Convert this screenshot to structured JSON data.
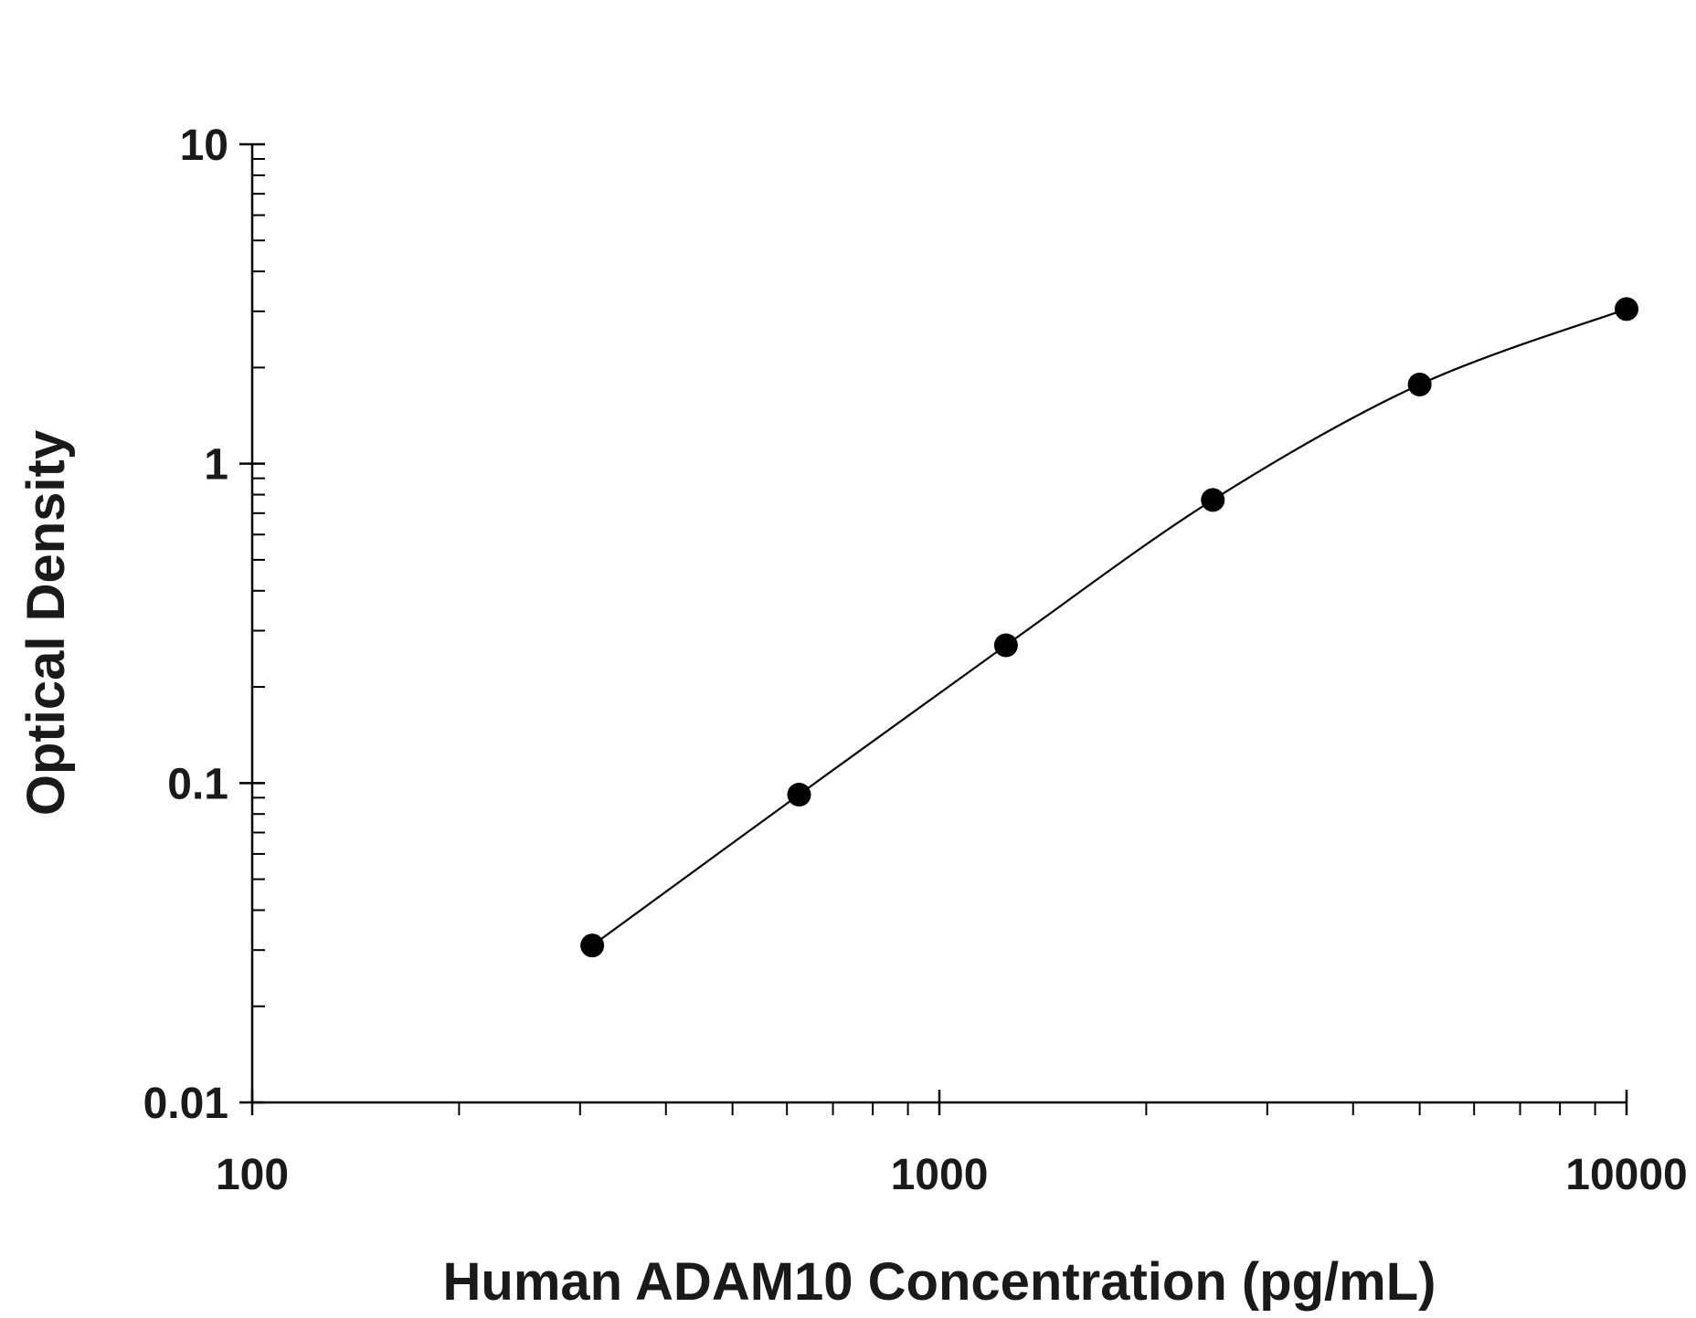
{
  "chart_data": {
    "type": "scatter",
    "title": "",
    "xlabel": "Human ADAM10 Concentration (pg/mL)",
    "ylabel": "Optical Density",
    "x_scale": "log",
    "y_scale": "log",
    "xlim": [
      100,
      10000
    ],
    "ylim": [
      0.01,
      10
    ],
    "x_ticks": [
      100,
      1000,
      10000
    ],
    "x_tick_labels": [
      "100",
      "1000",
      "10000"
    ],
    "y_ticks": [
      0.01,
      0.1,
      1,
      10
    ],
    "y_tick_labels": [
      "0.01",
      "0.1",
      "1",
      "10"
    ],
    "grid": false,
    "legend": "none",
    "series": [
      {
        "points": [
          {
            "x": 312.5,
            "y": 0.031
          },
          {
            "x": 625,
            "y": 0.092
          },
          {
            "x": 1250,
            "y": 0.27
          },
          {
            "x": 2500,
            "y": 0.77
          },
          {
            "x": 5000,
            "y": 1.77
          },
          {
            "x": 10000,
            "y": 3.05
          }
        ],
        "marker_color": "#000000",
        "curve": "fitted"
      }
    ],
    "colors": {
      "axis": "#000000",
      "text": "#1a1a1a",
      "curve": "#000000",
      "background": "#ffffff"
    }
  }
}
